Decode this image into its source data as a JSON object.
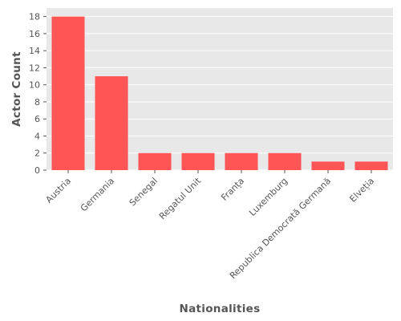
{
  "chart_data": {
    "type": "bar",
    "title": "",
    "xlabel": "Nationalities",
    "ylabel": "Actor Count",
    "categories": [
      "Austria",
      "Germania",
      "Senegal",
      "Regatul Unit",
      "Franța",
      "Luxemburg",
      "Republica Democrată Germană",
      "Elveția"
    ],
    "values": [
      18,
      11,
      2,
      2,
      2,
      2,
      1,
      1
    ],
    "ylim": [
      0,
      19
    ],
    "yticks": [
      0,
      2,
      4,
      6,
      8,
      10,
      12,
      14,
      16,
      18
    ],
    "grid": true,
    "legend": "none",
    "colors": {
      "bar": "#ff5555",
      "plot_background": "#e8e8e8",
      "grid": "#ffffff",
      "text": "#555555"
    }
  }
}
